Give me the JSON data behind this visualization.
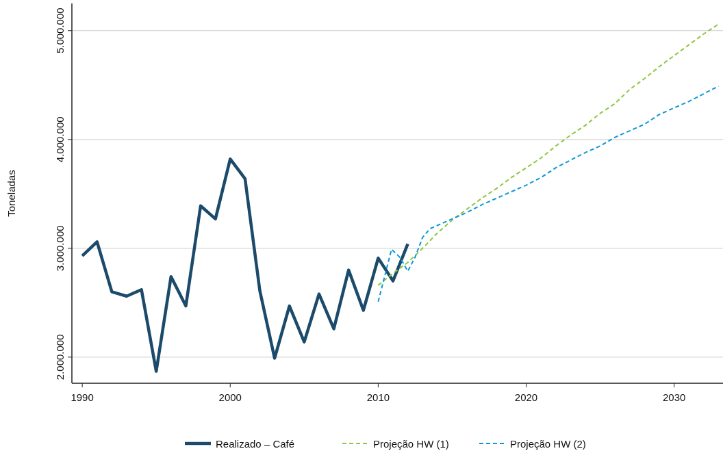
{
  "chart_data": {
    "type": "line",
    "ylabel": "Toneladas",
    "xlim": [
      1989.3,
      2033.3
    ],
    "ylim": [
      1760000,
      5250000
    ],
    "xticks": [
      1990,
      2000,
      2010,
      2020,
      2030
    ],
    "yticks": [
      {
        "value": 2000000,
        "label": "2.000.000"
      },
      {
        "value": 3000000,
        "label": "3.000.000"
      },
      {
        "value": 4000000,
        "label": "4.000.000"
      },
      {
        "value": 5000000,
        "label": "5.000.000"
      }
    ],
    "grid": "y",
    "legend": "bottom",
    "series": [
      {
        "name": "Realizado – Café",
        "color": "#1b4a6b",
        "line_style": "solid",
        "x": [
          1990,
          1991,
          1992,
          1993,
          1994,
          1995,
          1996,
          1997,
          1998,
          1999,
          2000,
          2001,
          2002,
          2003,
          2004,
          2005,
          2006,
          2007,
          2008,
          2009,
          2010,
          2011,
          2012
        ],
        "values": [
          2930000,
          3060000,
          2600000,
          2560000,
          2620000,
          1870000,
          2740000,
          2470000,
          3390000,
          3270000,
          3820000,
          3640000,
          2610000,
          1990000,
          2470000,
          2140000,
          2580000,
          2260000,
          2800000,
          2430000,
          2910000,
          2700000,
          3040000
        ]
      },
      {
        "name": "Projeção HW (1)",
        "color": "#8dc63f",
        "line_style": "dashed",
        "x": [
          2010,
          2011,
          2012,
          2013,
          2014,
          2015,
          2016,
          2017,
          2018,
          2019,
          2020,
          2021,
          2022,
          2023,
          2024,
          2025,
          2026,
          2027,
          2028,
          2029,
          2030,
          2031,
          2032,
          2033
        ],
        "values": [
          2660000,
          2770000,
          2870000,
          3000000,
          3140000,
          3260000,
          3360000,
          3460000,
          3550000,
          3650000,
          3740000,
          3830000,
          3940000,
          4040000,
          4130000,
          4240000,
          4330000,
          4460000,
          4560000,
          4670000,
          4770000,
          4870000,
          4970000,
          5060000
        ]
      },
      {
        "name": "Projeção HW (2)",
        "color": "#0d97d5",
        "line_style": "dashed",
        "x": [
          2010,
          2010.9,
          2011.3,
          2011.5,
          2012,
          2012.5,
          2013,
          2013.5,
          2014,
          2015,
          2016,
          2017,
          2018,
          2019,
          2020,
          2021,
          2022,
          2023,
          2024,
          2025,
          2026,
          2027,
          2028,
          2029,
          2030,
          2031,
          2032,
          2033
        ],
        "values": [
          2510000,
          2990000,
          2940000,
          2910000,
          2790000,
          2920000,
          3100000,
          3180000,
          3210000,
          3270000,
          3330000,
          3400000,
          3460000,
          3520000,
          3580000,
          3650000,
          3740000,
          3810000,
          3880000,
          3940000,
          4020000,
          4080000,
          4140000,
          4230000,
          4290000,
          4350000,
          4420000,
          4490000
        ]
      }
    ]
  }
}
